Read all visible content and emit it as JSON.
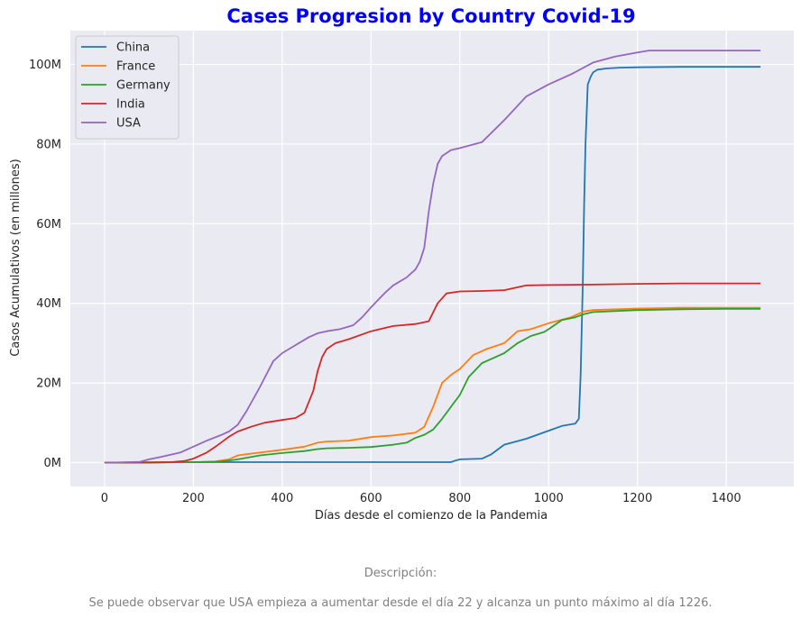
{
  "chart_data": {
    "type": "line",
    "title": "Cases Progresion by Country Covid-19",
    "xlabel": "Días desde el comienzo de la Pandemia",
    "ylabel": "Casos Acumulativos (en millones)",
    "xlim": [
      -77,
      1552
    ],
    "ylim": [
      -6,
      108.5
    ],
    "xticks": [
      0,
      200,
      400,
      600,
      800,
      1000,
      1200,
      1400
    ],
    "xtick_labels": [
      "0",
      "200",
      "400",
      "600",
      "800",
      "1000",
      "1200",
      "1400"
    ],
    "yticks": [
      0,
      20,
      40,
      60,
      80,
      100
    ],
    "ytick_labels": [
      "0M",
      "20M",
      "40M",
      "60M",
      "80M",
      "100M"
    ],
    "legend_position": "top-left",
    "grid": true,
    "series": [
      {
        "name": "China",
        "color": "#1f77b4",
        "x": [
          0,
          100,
          200,
          300,
          400,
          500,
          600,
          700,
          780,
          790,
          800,
          850,
          870,
          900,
          950,
          1000,
          1030,
          1060,
          1068,
          1072,
          1077,
          1080,
          1083,
          1088,
          1095,
          1100,
          1110,
          1130,
          1160,
          1200,
          1300,
          1400,
          1477
        ],
        "y": [
          0,
          0.05,
          0.1,
          0.1,
          0.1,
          0.1,
          0.1,
          0.1,
          0.1,
          0.5,
          0.8,
          1.0,
          2.0,
          4.5,
          6.0,
          8.0,
          9.2,
          9.8,
          11,
          22,
          45,
          65,
          80,
          95,
          97,
          98,
          98.7,
          99,
          99.2,
          99.3,
          99.4,
          99.4,
          99.4
        ]
      },
      {
        "name": "France",
        "color": "#ff7f0e",
        "x": [
          0,
          100,
          150,
          200,
          250,
          280,
          300,
          320,
          350,
          400,
          450,
          480,
          500,
          550,
          600,
          650,
          700,
          720,
          740,
          760,
          780,
          800,
          830,
          860,
          900,
          930,
          960,
          1000,
          1050,
          1080,
          1100,
          1200,
          1300,
          1400,
          1477
        ],
        "y": [
          0,
          0.1,
          0.1,
          0.1,
          0.3,
          0.8,
          1.8,
          2.1,
          2.5,
          3.2,
          4.0,
          5.0,
          5.3,
          5.5,
          6.4,
          6.8,
          7.5,
          9.0,
          14.0,
          20.0,
          22.0,
          23.5,
          27.0,
          28.5,
          30.0,
          33.0,
          33.5,
          35.0,
          36.5,
          38.0,
          38.3,
          38.7,
          38.9,
          38.9,
          38.9
        ]
      },
      {
        "name": "Germany",
        "color": "#2ca02c",
        "x": [
          0,
          100,
          200,
          250,
          280,
          300,
          350,
          400,
          450,
          480,
          500,
          550,
          600,
          650,
          680,
          700,
          720,
          740,
          760,
          790,
          800,
          820,
          850,
          880,
          900,
          930,
          960,
          990,
          1000,
          1030,
          1060,
          1080,
          1100,
          1200,
          1300,
          1400,
          1477
        ],
        "y": [
          0,
          0.05,
          0.1,
          0.2,
          0.5,
          0.8,
          1.8,
          2.4,
          2.9,
          3.4,
          3.6,
          3.7,
          3.9,
          4.5,
          5.0,
          6.2,
          7.0,
          8.3,
          11.0,
          15.5,
          17.0,
          21.5,
          25.0,
          26.5,
          27.5,
          30.0,
          31.8,
          32.8,
          33.5,
          35.8,
          36.5,
          37.3,
          37.8,
          38.3,
          38.5,
          38.6,
          38.6
        ]
      },
      {
        "name": "India",
        "color": "#d62728",
        "x": [
          0,
          100,
          150,
          180,
          200,
          230,
          250,
          280,
          300,
          330,
          360,
          400,
          430,
          450,
          470,
          480,
          490,
          500,
          520,
          550,
          600,
          650,
          700,
          730,
          750,
          770,
          800,
          850,
          900,
          950,
          1000,
          1100,
          1200,
          1300,
          1400,
          1477
        ],
        "y": [
          0,
          0,
          0.1,
          0.4,
          1.0,
          2.5,
          4.0,
          6.5,
          7.8,
          9.0,
          10.0,
          10.7,
          11.2,
          12.5,
          18.0,
          23.0,
          26.5,
          28.5,
          30.0,
          31.0,
          33.0,
          34.3,
          34.8,
          35.5,
          40.0,
          42.5,
          43.0,
          43.1,
          43.3,
          44.5,
          44.6,
          44.7,
          44.9,
          45.0,
          45.0,
          45.0
        ]
      },
      {
        "name": "USA",
        "color": "#9467bd",
        "x": [
          0,
          22,
          80,
          100,
          130,
          170,
          200,
          230,
          260,
          280,
          300,
          320,
          350,
          380,
          400,
          430,
          460,
          480,
          500,
          530,
          560,
          580,
          600,
          630,
          650,
          680,
          700,
          710,
          720,
          730,
          740,
          750,
          760,
          780,
          800,
          850,
          900,
          950,
          1000,
          1050,
          1100,
          1150,
          1200,
          1226,
          1300,
          1400,
          1477
        ],
        "y": [
          0,
          0,
          0.2,
          0.8,
          1.5,
          2.5,
          4.0,
          5.5,
          6.8,
          7.8,
          9.5,
          13.0,
          19.0,
          25.5,
          27.5,
          29.5,
          31.5,
          32.5,
          33.0,
          33.5,
          34.5,
          36.5,
          39.0,
          42.5,
          44.5,
          46.5,
          48.5,
          50.5,
          54.0,
          63.0,
          70.0,
          75.0,
          77.0,
          78.5,
          79.0,
          80.5,
          86.0,
          92.0,
          95.0,
          97.5,
          100.5,
          102.0,
          103.0,
          103.5,
          103.5,
          103.5,
          103.5
        ]
      }
    ]
  },
  "caption": {
    "title": "Descripción:",
    "text": "Se puede observar que USA empieza a aumentar desde el día 22 y alcanza un punto máximo al día 1226."
  }
}
